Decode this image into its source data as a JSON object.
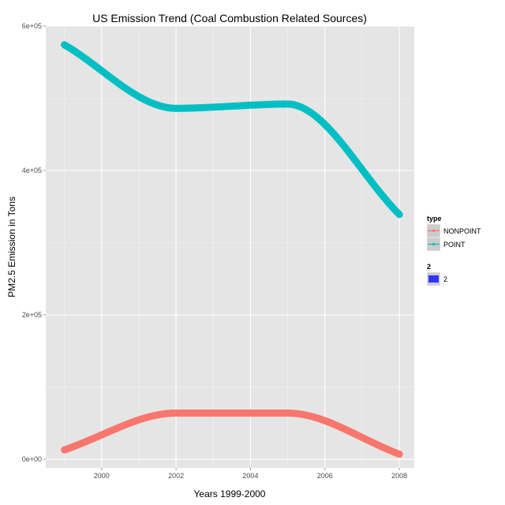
{
  "chart_data": {
    "type": "line",
    "title": "US Emission Trend (Coal Combustion Related Sources)",
    "xlabel": "Years 1999-2000",
    "ylabel": "PM2.5 Emission in Tons",
    "x": [
      1999,
      2002,
      2005,
      2008
    ],
    "xlim": [
      1998.5,
      2008.4
    ],
    "ylim": [
      -12000,
      600000
    ],
    "xticks": [
      2000,
      2002,
      2004,
      2006,
      2008
    ],
    "xtick_labels": [
      "2000",
      "2002",
      "2004",
      "2006",
      "2008"
    ],
    "yticks": [
      0,
      200000,
      400000,
      600000
    ],
    "ytick_labels": [
      "0e+00",
      "2e+05",
      "4e+05",
      "6e+05"
    ],
    "grid": true,
    "series": [
      {
        "name": "NONPOINT",
        "color": "#F8766D",
        "values": [
          13000,
          64000,
          64000,
          7000
        ]
      },
      {
        "name": "POINT",
        "color": "#00BFC4",
        "values": [
          574000,
          486000,
          492000,
          339000
        ]
      }
    ],
    "legend": {
      "position": "right",
      "groups": [
        {
          "title": "type",
          "entries": [
            {
              "label": "NONPOINT",
              "color": "#F8766D"
            },
            {
              "label": "POINT",
              "color": "#00BFC4"
            }
          ]
        },
        {
          "title": "2",
          "entries": [
            {
              "label": "2",
              "color": "#3333FF"
            }
          ]
        }
      ]
    }
  }
}
